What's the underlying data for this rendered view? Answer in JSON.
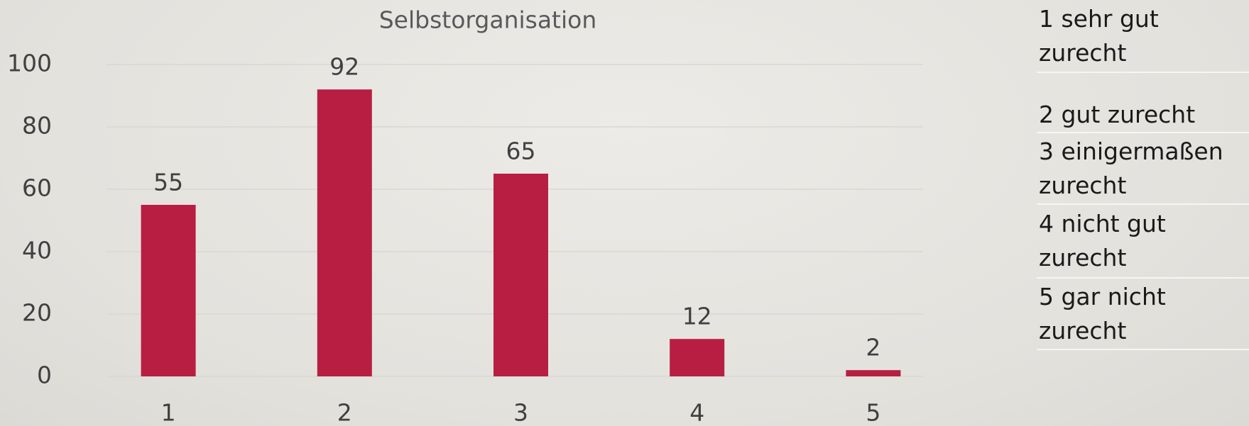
{
  "chart_data": {
    "type": "bar",
    "title": "Selbstorganisation",
    "categories": [
      "1",
      "2",
      "3",
      "4",
      "5"
    ],
    "values": [
      55,
      92,
      65,
      12,
      2
    ],
    "color": "#b81e42",
    "ylim": [
      0,
      100
    ],
    "yticks": [
      0,
      20,
      40,
      60,
      80,
      100
    ],
    "grid": true,
    "data_labels": true
  },
  "table": {
    "rows": [
      "1 sehr gut zurecht",
      "2 gut zurecht",
      "3 einigermaßen zurecht",
      "4 nicht gut zurecht",
      "5 gar nicht zurecht"
    ]
  }
}
